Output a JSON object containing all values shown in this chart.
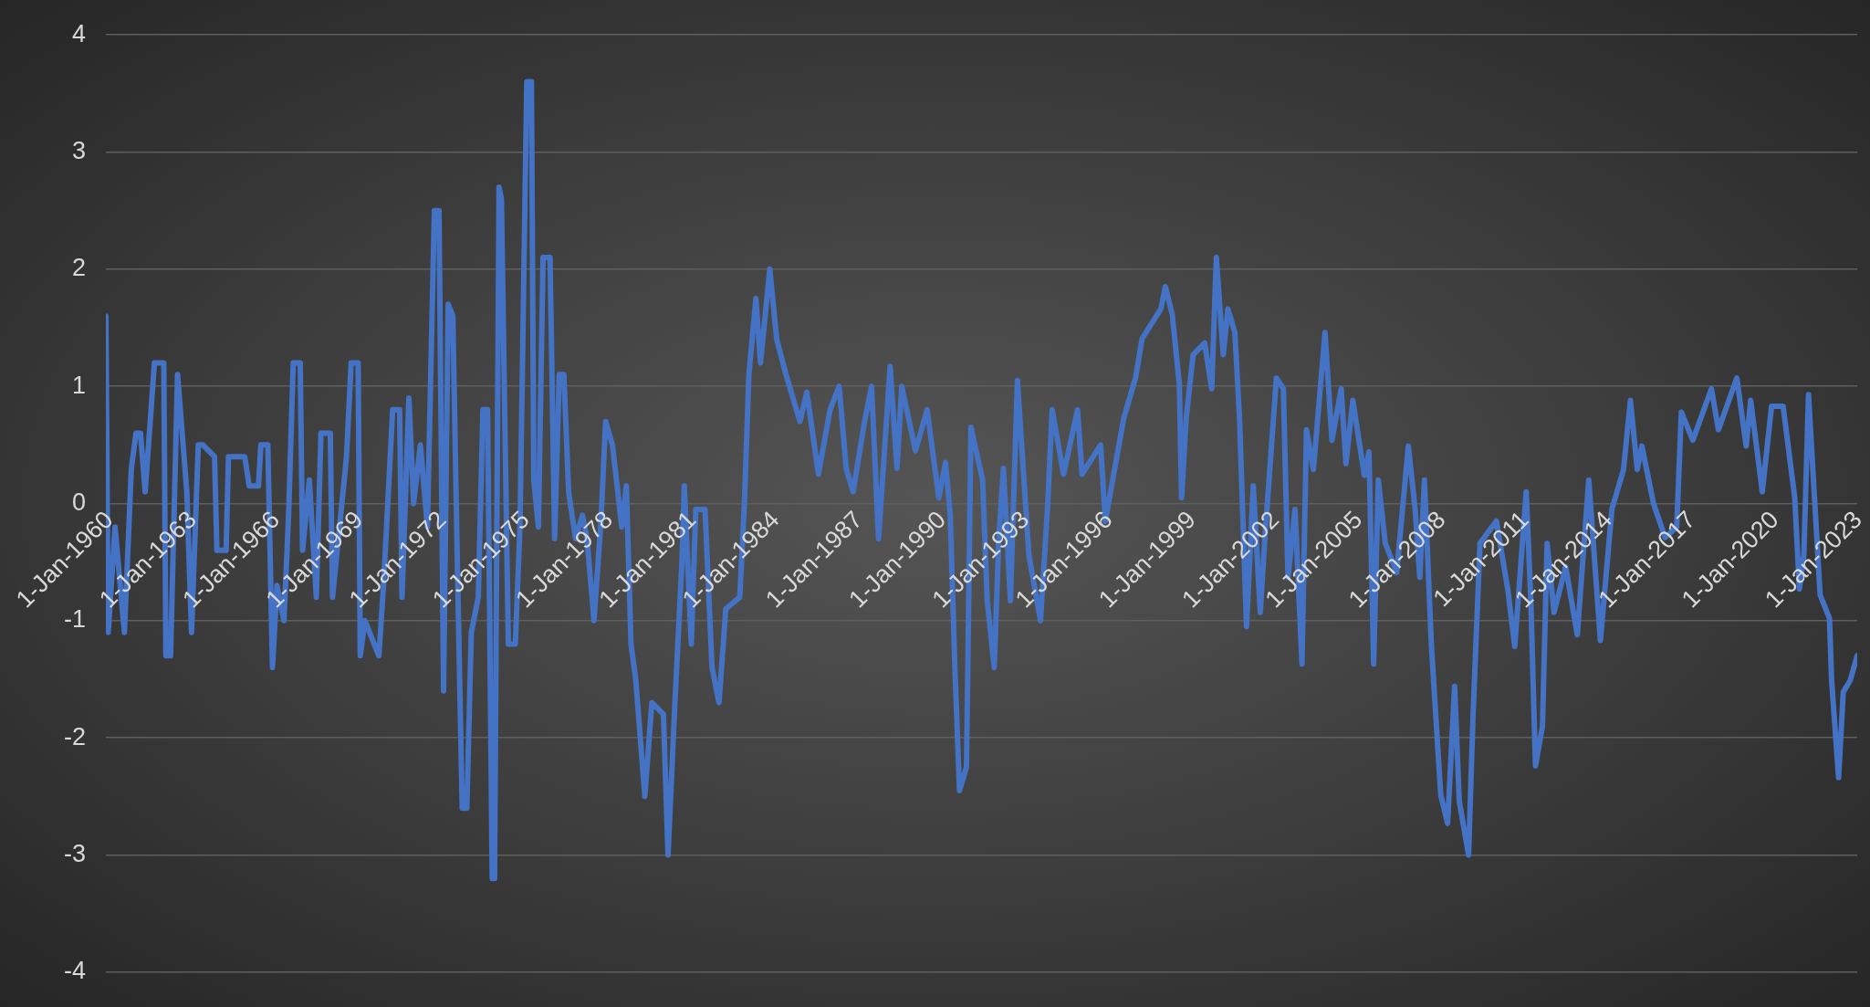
{
  "chart_data": {
    "type": "line",
    "xlim": [
      "1960-01",
      "2023-02"
    ],
    "ylim": [
      -4,
      4
    ],
    "yticks": [
      -4,
      -3,
      -2,
      -1,
      0,
      1,
      2,
      3,
      4
    ],
    "xticks": [
      {
        "value": "1960-01-01",
        "label": "1-Jan-1960"
      },
      {
        "value": "1963-01-01",
        "label": "1-Jan-1963"
      },
      {
        "value": "1966-01-01",
        "label": "1-Jan-1966"
      },
      {
        "value": "1969-01-01",
        "label": "1-Jan-1969"
      },
      {
        "value": "1972-01-01",
        "label": "1-Jan-1972"
      },
      {
        "value": "1975-01-01",
        "label": "1-Jan-1975"
      },
      {
        "value": "1978-01-01",
        "label": "1-Jan-1978"
      },
      {
        "value": "1981-01-01",
        "label": "1-Jan-1981"
      },
      {
        "value": "1984-01-01",
        "label": "1-Jan-1984"
      },
      {
        "value": "1987-01-01",
        "label": "1-Jan-1987"
      },
      {
        "value": "1990-01-01",
        "label": "1-Jan-1990"
      },
      {
        "value": "1993-01-01",
        "label": "1-Jan-1993"
      },
      {
        "value": "1996-01-01",
        "label": "1-Jan-1996"
      },
      {
        "value": "1999-01-01",
        "label": "1-Jan-1999"
      },
      {
        "value": "2002-01-01",
        "label": "1-Jan-2002"
      },
      {
        "value": "2005-01-01",
        "label": "1-Jan-2005"
      },
      {
        "value": "2008-01-01",
        "label": "1-Jan-2008"
      },
      {
        "value": "2011-01-01",
        "label": "1-Jan-2011"
      },
      {
        "value": "2014-01-01",
        "label": "1-Jan-2014"
      },
      {
        "value": "2017-01-01",
        "label": "1-Jan-2017"
      },
      {
        "value": "2020-01-01",
        "label": "1-Jan-2020"
      },
      {
        "value": "2023-01-01",
        "label": "1-Jan-2023"
      }
    ],
    "grid": "y",
    "legend": false,
    "line_style": "solid",
    "x": [
      "1960-01",
      "1960-02",
      "1960-05",
      "1960-09",
      "1960-12",
      "1961-02",
      "1961-04",
      "1961-06",
      "1961-10",
      "1962-02",
      "1962-03",
      "1962-05",
      "1962-08",
      "1962-12",
      "1963-02",
      "1963-05",
      "1963-07",
      "1963-12",
      "1964-01",
      "1964-05",
      "1964-06",
      "1965-01",
      "1965-03",
      "1965-07",
      "1965-08",
      "1965-11",
      "1966-01",
      "1966-03",
      "1966-06",
      "1966-08",
      "1966-10",
      "1967-01",
      "1967-02",
      "1967-05",
      "1967-08",
      "1967-10",
      "1968-02",
      "1968-03",
      "1968-09",
      "1968-11",
      "1969-02",
      "1969-03",
      "1969-05",
      "1969-11",
      "1970-01",
      "1970-05",
      "1970-08",
      "1970-09",
      "1970-12",
      "1971-02",
      "1971-05",
      "1971-08",
      "1971-11",
      "1972-01",
      "1972-03",
      "1972-05",
      "1972-07",
      "1972-09",
      "1972-11",
      "1973-01",
      "1973-03",
      "1973-06",
      "1973-08",
      "1973-10",
      "1973-12",
      "1974-01",
      "1974-03",
      "1974-04",
      "1974-07",
      "1974-10",
      "1974-12",
      "1975-03",
      "1975-05",
      "1975-06",
      "1975-08",
      "1975-10",
      "1976-01",
      "1976-03",
      "1976-05",
      "1976-07",
      "1976-09",
      "1976-12",
      "1977-03",
      "1977-05",
      "1977-08",
      "1977-11",
      "1978-01",
      "1978-04",
      "1978-08",
      "1978-10",
      "1978-12",
      "1979-02",
      "1979-06",
      "1979-09",
      "1980-02",
      "1980-04",
      "1980-07",
      "1980-10",
      "1980-11",
      "1981-02",
      "1981-04",
      "1981-08",
      "1981-11",
      "1982-02",
      "1982-05",
      "1982-11",
      "1983-01",
      "1983-03",
      "1983-06",
      "1983-08",
      "1983-12",
      "1984-03",
      "1984-07",
      "1985-01",
      "1985-04",
      "1985-09",
      "1986-02",
      "1986-06",
      "1986-09",
      "1986-12",
      "1987-05",
      "1987-08",
      "1987-11",
      "1988-04",
      "1988-07",
      "1988-09",
      "1989-03",
      "1989-08",
      "1990-01",
      "1990-04",
      "1990-06",
      "1990-08",
      "1990-10",
      "1991-01",
      "1991-03",
      "1991-08",
      "1991-10",
      "1992-01",
      "1992-03",
      "1992-05",
      "1992-08",
      "1992-11",
      "1993-04",
      "1993-09",
      "1993-12",
      "1994-02",
      "1994-07",
      "1995-01",
      "1995-03",
      "1995-11",
      "1996-01",
      "1996-09",
      "1997-02",
      "1997-05",
      "1998-01",
      "1998-03",
      "1998-06",
      "1998-09",
      "1998-10",
      "1998-12",
      "1999-03",
      "1999-08",
      "1999-11",
      "2000-01",
      "2000-04",
      "2000-06",
      "2000-09",
      "2000-11",
      "2001-02",
      "2001-05",
      "2001-08",
      "2001-10",
      "2002-03",
      "2002-06",
      "2002-08",
      "2002-11",
      "2003-02",
      "2003-04",
      "2003-07",
      "2003-12",
      "2004-03",
      "2004-07",
      "2004-09",
      "2004-12",
      "2005-05",
      "2005-07",
      "2005-09",
      "2005-11",
      "2006-02",
      "2006-07",
      "2006-12",
      "2007-03",
      "2007-05",
      "2007-07",
      "2007-10",
      "2008-02",
      "2008-05",
      "2008-08",
      "2008-10",
      "2009-02",
      "2009-04",
      "2009-07",
      "2010-02",
      "2010-07",
      "2010-10",
      "2011-03",
      "2011-05",
      "2011-07",
      "2011-10",
      "2011-12",
      "2012-03",
      "2012-08",
      "2013-01",
      "2013-06",
      "2013-11",
      "2014-04",
      "2014-09",
      "2014-12",
      "2015-03",
      "2015-05",
      "2015-10",
      "2016-03",
      "2016-08",
      "2016-10",
      "2017-03",
      "2017-11",
      "2018-02",
      "2018-10",
      "2019-02",
      "2019-04",
      "2019-09",
      "2020-01",
      "2020-06",
      "2020-11",
      "2021-01",
      "2021-03",
      "2021-05",
      "2021-10",
      "2022-02",
      "2022-03",
      "2022-06",
      "2022-08",
      "2022-11",
      "2023-02"
    ],
    "series": [
      {
        "color": "#4472c4",
        "values": [
          1.6,
          -1.1,
          -0.2,
          -1.1,
          0.3,
          0.6,
          0.6,
          0.1,
          1.2,
          1.2,
          -1.3,
          -1.3,
          1.1,
          0.1,
          -1.1,
          0.5,
          0.5,
          0.4,
          -0.4,
          -0.4,
          0.4,
          0.4,
          0.15,
          0.15,
          0.5,
          0.5,
          -1.4,
          -0.7,
          -1.0,
          -0.1,
          1.2,
          1.2,
          -0.4,
          0.2,
          -0.8,
          0.6,
          0.6,
          -0.8,
          0.4,
          1.2,
          1.2,
          -1.3,
          -1.0,
          -1.3,
          -0.7,
          0.8,
          0.8,
          -0.8,
          0.9,
          0.0,
          0.5,
          -0.2,
          2.5,
          2.5,
          -1.6,
          1.7,
          1.6,
          -0.6,
          -2.6,
          -2.6,
          -1.1,
          -0.8,
          0.8,
          0.8,
          -3.2,
          -3.2,
          2.7,
          2.6,
          -1.2,
          -1.2,
          -0.2,
          3.6,
          3.6,
          0.2,
          -0.2,
          2.1,
          2.1,
          -0.3,
          1.1,
          1.1,
          0.1,
          -0.3,
          -0.1,
          -0.3,
          -1.0,
          -0.15,
          0.7,
          0.5,
          -0.2,
          0.15,
          -1.2,
          -1.5,
          -2.5,
          -1.7,
          -1.8,
          -3.0,
          -1.7,
          -0.5,
          0.15,
          -1.2,
          -0.05,
          -0.05,
          -1.4,
          -1.7,
          -0.9,
          -0.8,
          0.0,
          1.1,
          1.75,
          1.2,
          2.0,
          1.4,
          1.1,
          0.7,
          0.95,
          0.25,
          0.8,
          1.0,
          0.3,
          0.1,
          0.7,
          1.0,
          -0.3,
          1.17,
          0.3,
          1.0,
          0.45,
          0.8,
          0.05,
          0.35,
          -0.1,
          -1.4,
          -2.45,
          -2.25,
          0.65,
          0.2,
          -0.83,
          -1.4,
          -0.3,
          0.3,
          -0.83,
          1.05,
          -0.44,
          -1.0,
          -0.05,
          0.8,
          0.25,
          0.8,
          0.25,
          0.5,
          -0.15,
          0.73,
          1.07,
          1.41,
          1.66,
          1.85,
          1.61,
          1.02,
          0.05,
          0.73,
          1.27,
          1.37,
          0.98,
          2.1,
          1.27,
          1.66,
          1.46,
          0.73,
          -1.05,
          0.15,
          -0.93,
          -0.29,
          1.07,
          0.98,
          -0.63,
          -0.05,
          -1.37,
          0.63,
          0.29,
          1.46,
          0.54,
          0.98,
          0.34,
          0.88,
          0.24,
          0.44,
          -1.37,
          0.2,
          -0.34,
          -0.59,
          0.49,
          -0.05,
          -0.63,
          0.2,
          -1.22,
          -2.49,
          -2.73,
          -1.56,
          -2.54,
          -3.0,
          -1.8,
          -0.34,
          -0.15,
          -0.73,
          -1.22,
          0.1,
          -0.83,
          -2.24,
          -1.9,
          -0.34,
          -0.93,
          -0.54,
          -1.12,
          0.2,
          -1.17,
          -0.05,
          0.29,
          0.88,
          0.29,
          0.49,
          0.0,
          -0.29,
          -0.2,
          0.78,
          0.54,
          0.98,
          0.63,
          1.07,
          0.49,
          0.88,
          0.1,
          0.83,
          0.83,
          0.05,
          -0.73,
          -0.44,
          0.93,
          -0.78,
          -0.98,
          -1.51,
          -2.34,
          -1.61,
          -1.51,
          -1.3
        ]
      }
    ]
  }
}
